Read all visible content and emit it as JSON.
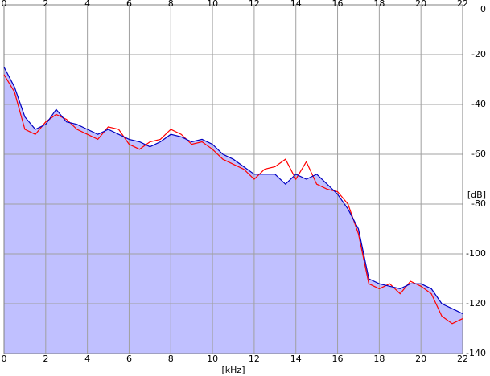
{
  "chart_data": {
    "type": "line",
    "x_label": "[kHz]",
    "y_label": "[dB]",
    "x": [
      0,
      0.5,
      1,
      1.5,
      2,
      2.5,
      3,
      3.5,
      4,
      4.5,
      5,
      5.5,
      6,
      6.5,
      7,
      7.5,
      8,
      8.5,
      9,
      9.5,
      10,
      10.5,
      11,
      11.5,
      12,
      12.5,
      13,
      13.5,
      14,
      14.5,
      15,
      15.5,
      16,
      16.5,
      17,
      17.5,
      18,
      18.5,
      19,
      19.5,
      20,
      20.5,
      21,
      21.5,
      22
    ],
    "series": [
      {
        "color": "#ff0000",
        "values": [
          -28,
          -35,
          -50,
          -52,
          -47,
          -44,
          -46,
          -50,
          -52,
          -54,
          -49,
          -50,
          -56,
          -58,
          -55,
          -54,
          -50,
          -52,
          -56,
          -55,
          -58,
          -62,
          -64,
          -66,
          -70,
          -66,
          -65,
          -62,
          -70,
          -63,
          -72,
          -74,
          -75,
          -80,
          -92,
          -112,
          -114,
          -112,
          -116,
          -111,
          -113,
          -116,
          -125,
          -128,
          -126
        ]
      },
      {
        "color": "#0000c0",
        "fill": "#c0c0ff",
        "values": [
          -25,
          -33,
          -45,
          -50,
          -48,
          -42,
          -47,
          -48,
          -50,
          -52,
          -50,
          -52,
          -54,
          -55,
          -57,
          -55,
          -52,
          -53,
          -55,
          -54,
          -56,
          -60,
          -62,
          -65,
          -68,
          -68,
          -68,
          -72,
          -68,
          -70,
          -68,
          -72,
          -76,
          -82,
          -90,
          -110,
          -112,
          -113,
          -114,
          -112,
          -112,
          -114,
          -120,
          -122,
          -124
        ]
      }
    ],
    "xlim": [
      0,
      22
    ],
    "xticks": [
      0,
      2,
      4,
      6,
      8,
      10,
      12,
      14,
      16,
      18,
      20,
      22
    ],
    "ylim": [
      -140,
      0
    ],
    "yticks": [
      0,
      -20,
      -40,
      -60,
      -80,
      -100,
      -120,
      -140
    ],
    "grid": true
  }
}
